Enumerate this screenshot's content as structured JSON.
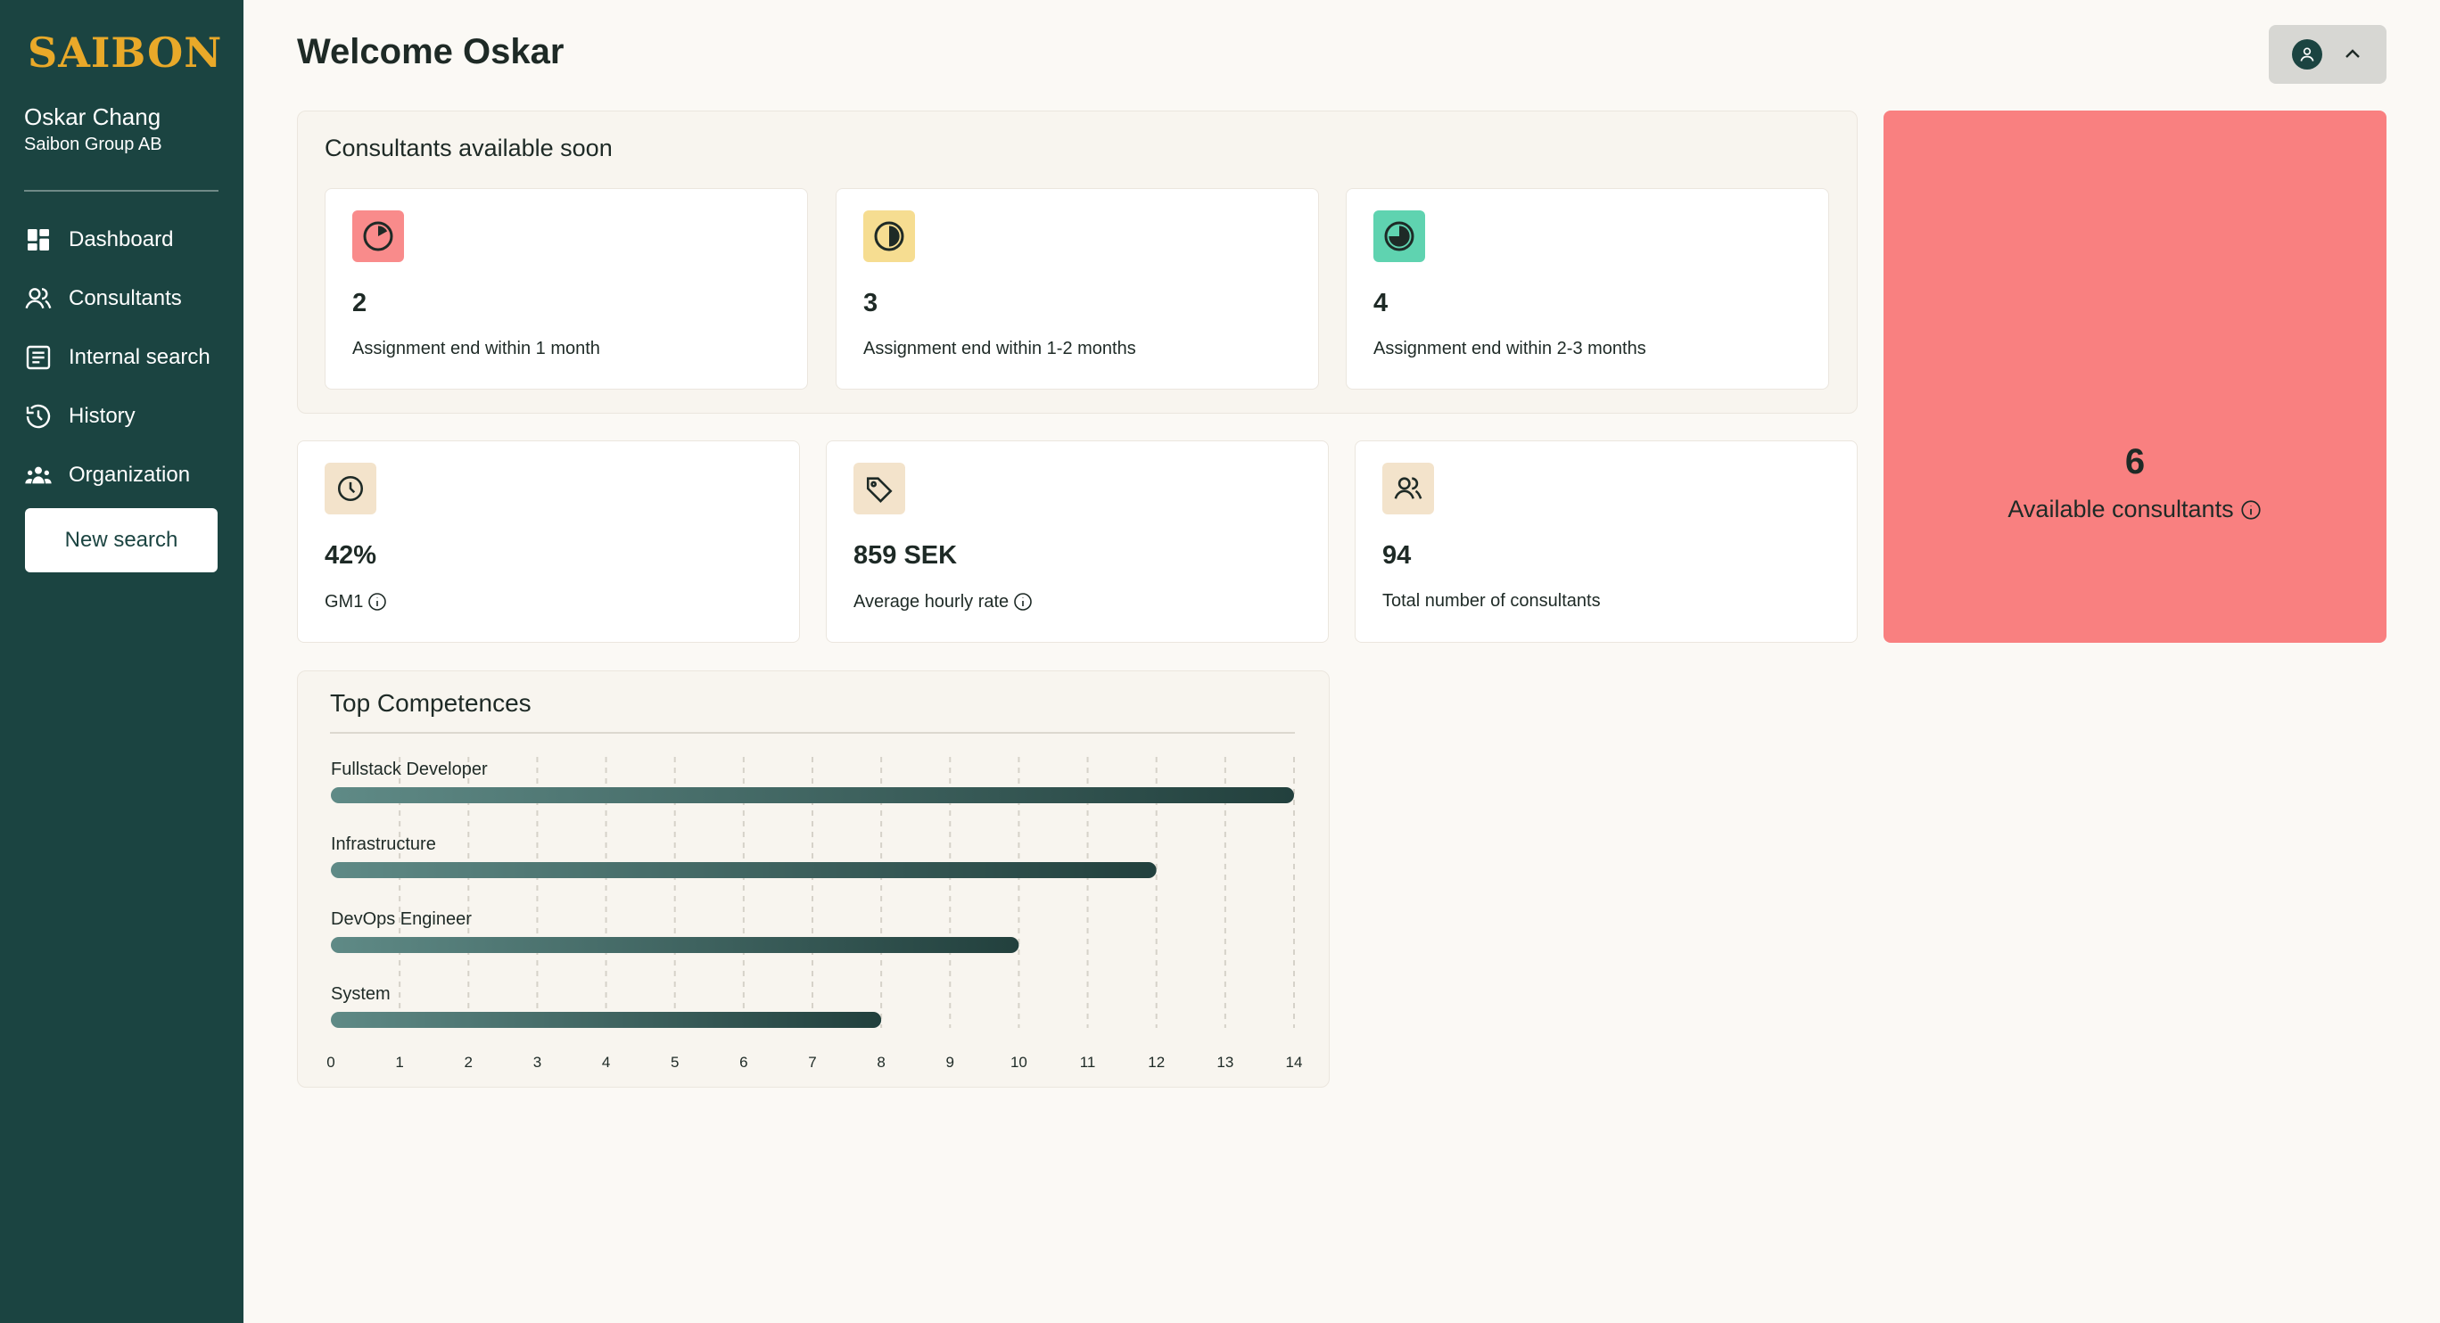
{
  "sidebar": {
    "logo": "SAIBON",
    "user_name": "Oskar Chang",
    "user_org": "Saibon Group AB",
    "items": [
      {
        "label": "Dashboard",
        "icon": "dashboard-icon"
      },
      {
        "label": "Consultants",
        "icon": "users-icon"
      },
      {
        "label": "Internal search",
        "icon": "list-icon"
      },
      {
        "label": "History",
        "icon": "history-icon"
      },
      {
        "label": "Organization",
        "icon": "organization-icon"
      }
    ],
    "new_search_label": "New search"
  },
  "header": {
    "title": "Welcome Oskar",
    "profile_icon": "user-icon"
  },
  "soon": {
    "title": "Consultants available soon",
    "cards": [
      {
        "value": "2",
        "label": "Assignment end within 1 month",
        "color": "#f98b8b"
      },
      {
        "value": "3",
        "label": "Assignment end within 1-2 months",
        "color": "#f6dd91"
      },
      {
        "value": "4",
        "label": "Assignment end within 2-3 months",
        "color": "#5fd3b0"
      }
    ]
  },
  "stats": [
    {
      "value": "42%",
      "label": "GM1",
      "icon": "clock-icon"
    },
    {
      "value": "859 SEK",
      "label": "Average hourly rate",
      "icon": "tag-icon"
    },
    {
      "value": "94",
      "label": "Total number of consultants",
      "icon": "users-icon"
    }
  ],
  "available": {
    "value": "6",
    "label": "Available consultants",
    "color": "#f98080"
  },
  "competences": {
    "title": "Top Competences",
    "chart_data": {
      "type": "bar",
      "orientation": "horizontal",
      "categories": [
        "Fullstack Developer",
        "Infrastructure",
        "DevOps Engineer",
        "System"
      ],
      "values": [
        14,
        12,
        10,
        8
      ],
      "xlim": [
        0,
        14
      ],
      "ticks": [
        "0",
        "1",
        "2",
        "3",
        "4",
        "5",
        "6",
        "7",
        "8",
        "9",
        "10",
        "11",
        "12",
        "13",
        "14"
      ],
      "grid": true
    }
  }
}
